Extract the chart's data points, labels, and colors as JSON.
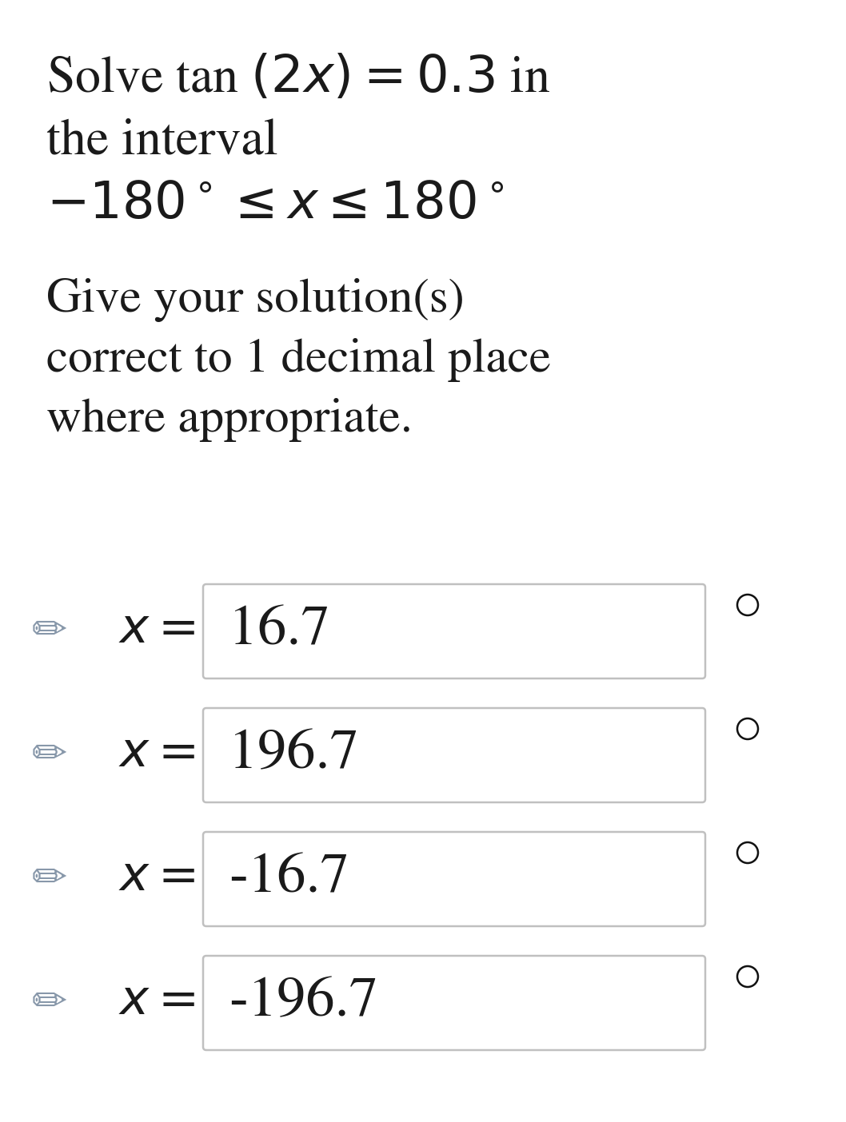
{
  "background_color": "#ffffff",
  "text_color": "#1a1a1a",
  "box_edge_color": "#c0c0c0",
  "box_fill_color": "#ffffff",
  "radio_color": "#111111",
  "pencil_color": "#8898aa",
  "answers": [
    "16.7",
    "196.7",
    "-16.7",
    "-196.7"
  ],
  "title_lines": [
    "Solve tan \\((2x)\\) \\(= 0.3\\) in",
    "the interval",
    "\\(-180^\\circ \\leq x \\leq 180^\\circ\\)"
  ],
  "subtitle_lines": [
    "Give your solution(s)",
    "correct to 1 decimal place",
    "where appropriate."
  ],
  "font_size_title": 46,
  "font_size_subtitle": 44,
  "font_size_answer": 52,
  "font_size_label": 44,
  "font_size_pencil": 38,
  "font_size_radio": 16
}
